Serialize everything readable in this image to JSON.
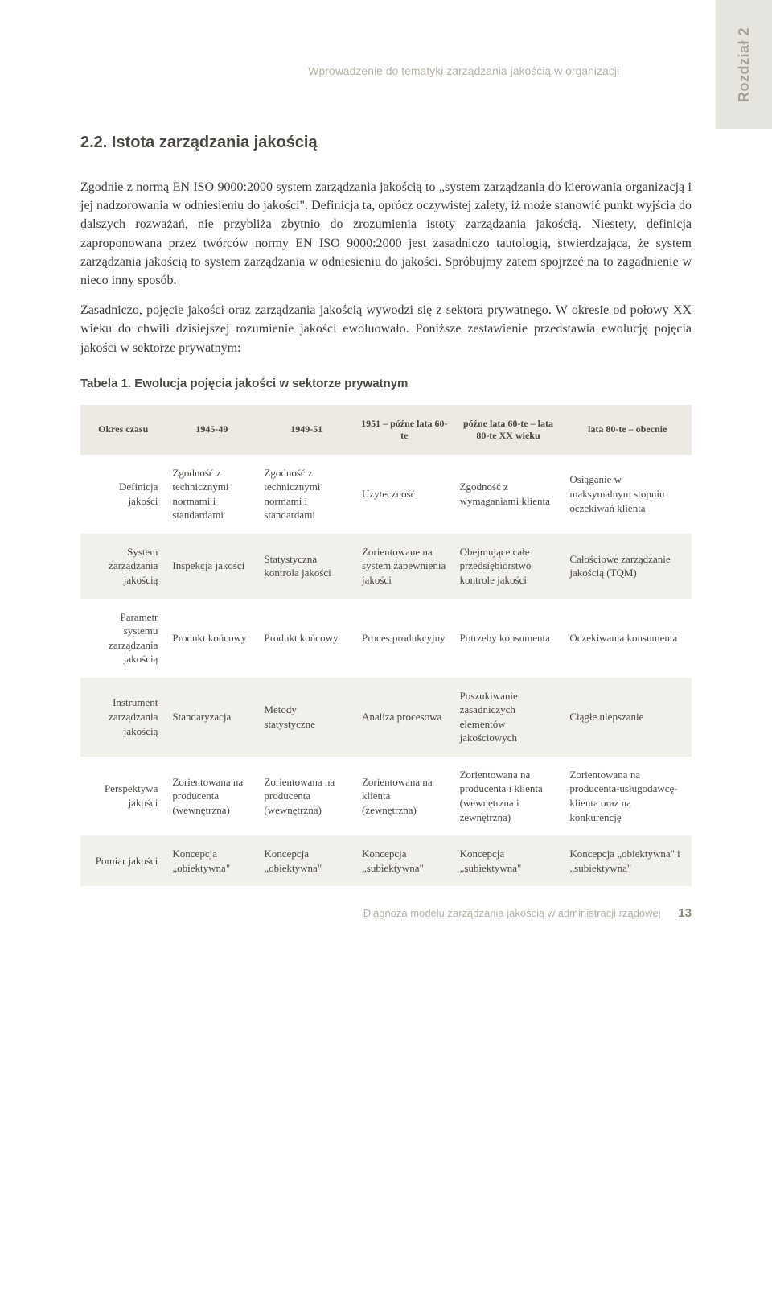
{
  "side_tab": "Rozdział 2",
  "running_head": "Wprowadzenie do tematyki zarządzania jakością w organizacji",
  "section_title": "2.2. Istota zarządzania jakością",
  "paragraphs": {
    "p1": "Zgodnie z normą EN ISO 9000:2000 system zarządzania jakością to „system zarządzania do kierowania organizacją i jej nadzorowania w odniesieniu do jakości\". Definicja ta, oprócz oczywistej zalety, iż może stanowić punkt wyjścia do dalszych rozważań, nie przybliża zbytnio do zrozumienia istoty zarządzania jakością. Niestety, definicja zaproponowana przez twórców normy EN ISO 9000:2000 jest zasadniczo tautologią, stwierdzającą, że system zarządzania jakością to system zarządzania w odniesieniu do jakości. Spróbujmy zatem spojrzeć na to zagadnienie w nieco inny sposób.",
    "p2": "Zasadniczo, pojęcie jakości oraz zarządzania jakością wywodzi się z sektora prywatnego. W okresie od połowy XX wieku do chwili dzisiejszej rozumienie jakości ewoluowało. Poniższe zestawienie przedstawia ewolucję pojęcia jakości w sektorze prywatnym:"
  },
  "table_caption": "Tabela 1. Ewolucja pojęcia jakości w sektorze prywatnym",
  "table": {
    "type": "table",
    "header_bg": "#eceae3",
    "row_alt_bg": "#f2f0ea",
    "row_bg": "#ffffff",
    "text_color": "#4a4842",
    "font_size_header": 12,
    "font_size_cell": 13,
    "columns": [
      "Okres czasu",
      "1945-49",
      "1949-51",
      "1951 – późne lata 60-te",
      "późne lata 60-te – lata 80-te XX wieku",
      "lata 80-te – obecnie"
    ],
    "col_widths_pct": [
      14,
      15,
      16,
      16,
      18,
      21
    ],
    "rows": [
      {
        "head": "Definicja jakości",
        "cells": [
          "Zgodność z technicznymi normami i standardami",
          "Zgodność z technicznymi normami i standardami",
          "Użyteczność",
          "Zgodność z wymaganiami klienta",
          "Osiąganie w maksymalnym stopniu oczekiwań klienta"
        ]
      },
      {
        "head": "System zarządzania jakością",
        "cells": [
          "Inspekcja jakości",
          "Statystyczna kontrola jakości",
          "Zorientowane na system zapewnienia jakości",
          "Obejmujące całe przedsiębiorstwo kontrole jakości",
          "Całościowe zarządzanie jakością (TQM)"
        ]
      },
      {
        "head": "Parametr systemu zarządzania jakością",
        "cells": [
          "Produkt końcowy",
          "Produkt końcowy",
          "Proces produkcyjny",
          "Potrzeby konsumenta",
          "Oczekiwania konsumenta"
        ]
      },
      {
        "head": "Instrument zarządzania jakością",
        "cells": [
          "Standaryzacja",
          "Metody statystyczne",
          "Analiza procesowa",
          "Poszukiwanie zasadniczych elementów jakościowych",
          "Ciągłe ulepszanie"
        ]
      },
      {
        "head": "Perspektywa jakości",
        "cells": [
          "Zorientowana na producenta (wewnętrzna)",
          "Zorientowana na producenta (wewnętrzna)",
          "Zorientowana na klienta (zewnętrzna)",
          "Zorientowana na producenta i klienta (wewnętrzna i zewnętrzna)",
          "Zorientowana na producenta-usługodawcę-klienta oraz na konkurencję"
        ]
      },
      {
        "head": "Pomiar jakości",
        "cells": [
          "Koncepcja „obiektywna\"",
          "Koncepcja „obiektywna\"",
          "Koncepcja „subiektywna\"",
          "Koncepcja „subiektywna\"",
          "Koncepcja „obiektywna\" i „subiektywna\""
        ]
      }
    ]
  },
  "footer": {
    "text": "Diagnoza modelu zarządzania jakością w administracji rządowej",
    "page_number": "13"
  }
}
